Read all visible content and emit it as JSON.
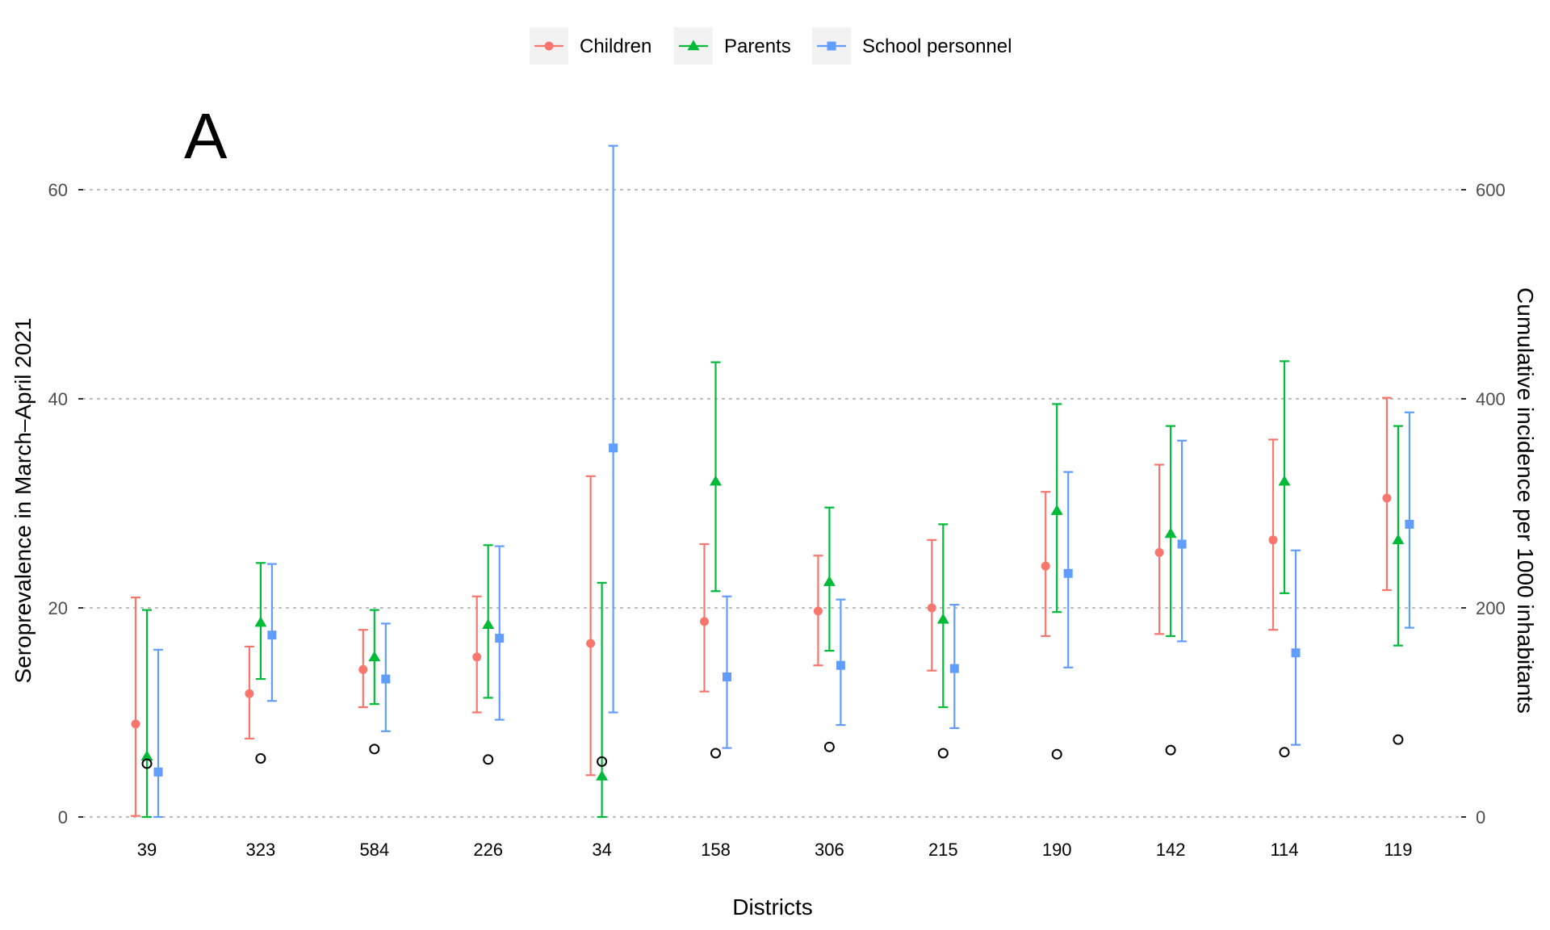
{
  "chart_data": {
    "type": "scatter",
    "panel_label": "A",
    "categories": [
      "39",
      "323",
      "584",
      "226",
      "34",
      "158",
      "306",
      "215",
      "190",
      "142",
      "114",
      "119"
    ],
    "xlabel": "Districts",
    "ylabel": "Seroprevalence in March–April 2021",
    "y2label": "Cumulative incidence per 1000 inhabitants",
    "ylim": [
      0,
      60
    ],
    "y2lim": [
      0,
      600
    ],
    "yticks": [
      0,
      20,
      40,
      60
    ],
    "y2ticks": [
      0,
      200,
      400,
      600
    ],
    "grid": "horizontal dotted",
    "legend_position": "top",
    "series": [
      {
        "name": "Children",
        "color": "#F8766D",
        "marker": "circle",
        "values": [
          8.9,
          11.8,
          14.1,
          15.3,
          16.6,
          18.7,
          19.7,
          20.0,
          24.0,
          25.3,
          26.5,
          30.5
        ],
        "lower": [
          0.1,
          7.5,
          10.5,
          10.0,
          4.0,
          12.0,
          14.5,
          14.0,
          17.3,
          17.5,
          17.9,
          21.7
        ],
        "upper": [
          21.0,
          16.3,
          17.9,
          21.1,
          32.6,
          26.1,
          25.0,
          26.5,
          31.1,
          33.7,
          36.1,
          40.1
        ]
      },
      {
        "name": "Parents",
        "color": "#00BA38",
        "marker": "triangle",
        "values": [
          5.8,
          18.6,
          15.3,
          18.4,
          3.9,
          32.1,
          22.5,
          18.9,
          29.3,
          27.1,
          32.1,
          26.5
        ],
        "lower": [
          0.0,
          13.2,
          10.8,
          11.4,
          0.0,
          21.6,
          15.9,
          10.5,
          19.6,
          17.3,
          21.4,
          16.4
        ],
        "upper": [
          19.8,
          24.3,
          19.8,
          26.0,
          22.4,
          43.5,
          29.6,
          28.0,
          39.5,
          37.4,
          43.6,
          37.4
        ]
      },
      {
        "name": "School personnel",
        "color": "#619CFF",
        "marker": "square",
        "values": [
          4.3,
          17.4,
          13.2,
          17.1,
          35.3,
          13.4,
          14.5,
          14.2,
          23.3,
          26.1,
          15.7,
          28.0
        ],
        "lower": [
          0.0,
          11.1,
          8.2,
          9.3,
          10.0,
          6.6,
          8.8,
          8.5,
          14.3,
          16.8,
          6.9,
          18.1
        ],
        "upper": [
          16.0,
          24.2,
          18.5,
          25.9,
          64.2,
          21.1,
          20.8,
          20.3,
          33.0,
          36.0,
          25.5,
          38.7
        ]
      }
    ],
    "cumulative_incidence": {
      "marker": "open circle",
      "color": "#000000",
      "values": [
        51,
        56,
        65,
        55,
        53,
        61,
        67,
        61,
        60,
        64,
        62,
        74
      ]
    }
  }
}
